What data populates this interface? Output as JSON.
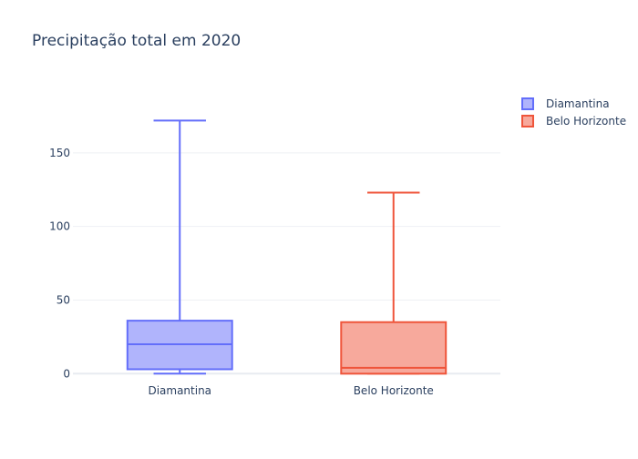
{
  "chart_data": {
    "type": "box",
    "title": "Precipitação total em 2020",
    "xlabel": "",
    "ylabel": "",
    "categories": [
      "Diamantina",
      "Belo Horizonte"
    ],
    "ylim": [
      -6,
      192
    ],
    "yticks": [
      0,
      50,
      100,
      150
    ],
    "grid": true,
    "legend": "top-right",
    "series": [
      {
        "name": "Diamantina",
        "color": "#636efa",
        "fill": "#b0b4fc",
        "min": 0,
        "q1": 3,
        "median": 20,
        "q3": 36,
        "max": 172
      },
      {
        "name": "Belo Horizonte",
        "color": "#ef553b",
        "fill": "#f7a99c",
        "min": 0,
        "q1": 0,
        "median": 4,
        "q3": 35,
        "max": 123
      }
    ]
  }
}
